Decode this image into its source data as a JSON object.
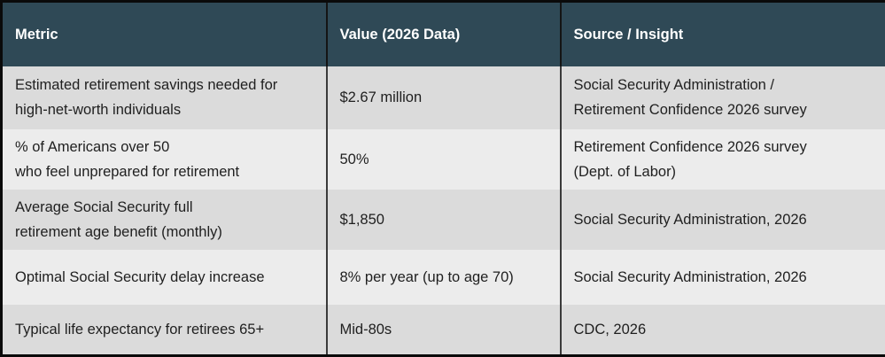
{
  "table": {
    "columns": {
      "metric": "Metric",
      "value": "Value (2026 Data)",
      "source": "Source / Insight"
    },
    "rows": [
      {
        "metric": "Estimated retirement savings needed for\nhigh-net-worth individuals",
        "value": "$2.67 million",
        "source": "Social Security Administration /\nRetirement Confidence 2026 survey"
      },
      {
        "metric": "% of Americans over 50\nwho feel unprepared for retirement",
        "value": "50%",
        "source": "Retirement Confidence 2026 survey\n(Dept. of Labor)"
      },
      {
        "metric": "Average Social Security full\nretirement age benefit (monthly)",
        "value": "$1,850",
        "source": "Social Security Administration, 2026"
      },
      {
        "metric": "Optimal Social Security delay increase",
        "value": "8% per year (up to age 70)",
        "source": "Social Security Administration, 2026"
      },
      {
        "metric": "Typical life expectancy for retirees 65+",
        "value": "Mid-80s",
        "source": "CDC, 2026"
      }
    ]
  },
  "colors": {
    "header_background": "#2F4956",
    "header_text": "#FFFFFF",
    "row_odd_background": "#DBDBDB",
    "row_even_background": "#ECECEC",
    "body_text": "#1F1F1F",
    "outer_border": "#0A0A0A",
    "column_separator": "#3A3A3A"
  },
  "chart_data": {
    "type": "table",
    "title": "",
    "columns": [
      "Metric",
      "Value (2026 Data)",
      "Source / Insight"
    ],
    "rows": [
      [
        "Estimated retirement savings needed for high-net-worth individuals",
        "$2.67 million",
        "Social Security Administration / Retirement Confidence 2026 survey"
      ],
      [
        "% of Americans over 50 who feel unprepared for retirement",
        "50%",
        "Retirement Confidence 2026 survey (Dept. of Labor)"
      ],
      [
        "Average Social Security full retirement age benefit (monthly)",
        "$1,850",
        "Social Security Administration, 2026"
      ],
      [
        "Optimal Social Security delay increase",
        "8% per year (up to age 70)",
        "Social Security Administration, 2026"
      ],
      [
        "Typical life expectancy for retirees 65+",
        "Mid-80s",
        "CDC, 2026"
      ]
    ]
  }
}
